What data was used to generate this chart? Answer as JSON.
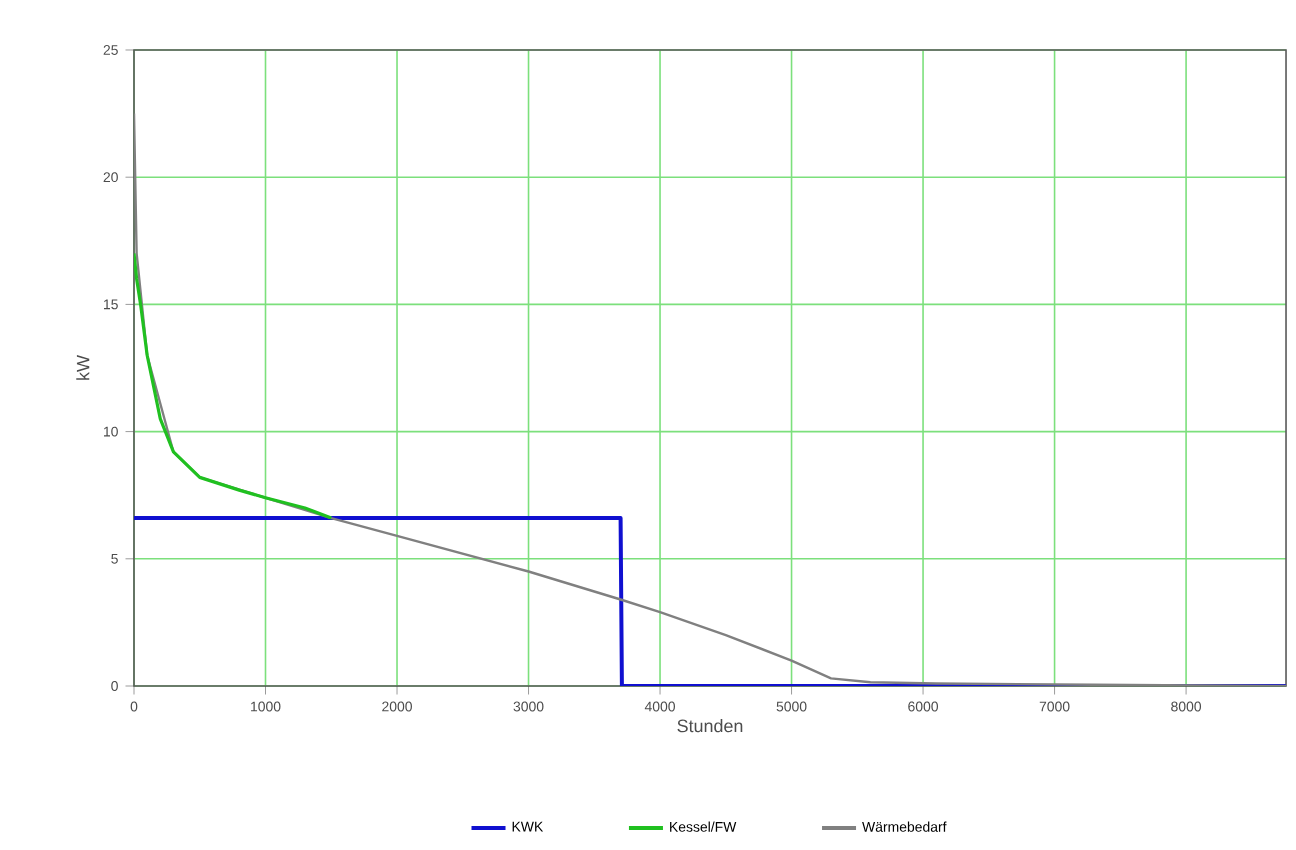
{
  "chart_data": {
    "type": "line",
    "xlabel": "Stunden",
    "ylabel": "kW",
    "xlim": [
      0,
      8760
    ],
    "ylim": [
      0,
      25
    ],
    "xticks": [
      0,
      1000,
      2000,
      3000,
      4000,
      5000,
      6000,
      7000,
      8000
    ],
    "yticks": [
      0,
      5,
      10,
      15,
      20,
      25
    ],
    "grid": true,
    "legend": "bottom",
    "series": [
      {
        "name": "KWK",
        "color": "#1010d0",
        "x": [
          0,
          3700,
          3710,
          8760
        ],
        "values": [
          6.6,
          6.6,
          0,
          0
        ]
      },
      {
        "name": "Kessel/FW",
        "color": "#20c020",
        "x": [
          0,
          20,
          50,
          100,
          200,
          300,
          500,
          800,
          1000,
          1300,
          1500
        ],
        "values": [
          17,
          16,
          15,
          13,
          10.5,
          9.2,
          8.2,
          7.7,
          7.4,
          7.0,
          6.6
        ]
      },
      {
        "name": "Wärmebedarf",
        "color": "#808080",
        "x": [
          0,
          20,
          100,
          300,
          500,
          1000,
          1500,
          2000,
          3000,
          3700,
          4000,
          4500,
          5000,
          5300,
          5600,
          6100,
          7300,
          8760
        ],
        "values": [
          22.5,
          17,
          13,
          9.2,
          8.2,
          7.4,
          6.6,
          5.9,
          4.5,
          3.4,
          2.9,
          2.0,
          1.0,
          0.3,
          0.15,
          0.1,
          0.05,
          0
        ]
      }
    ]
  }
}
